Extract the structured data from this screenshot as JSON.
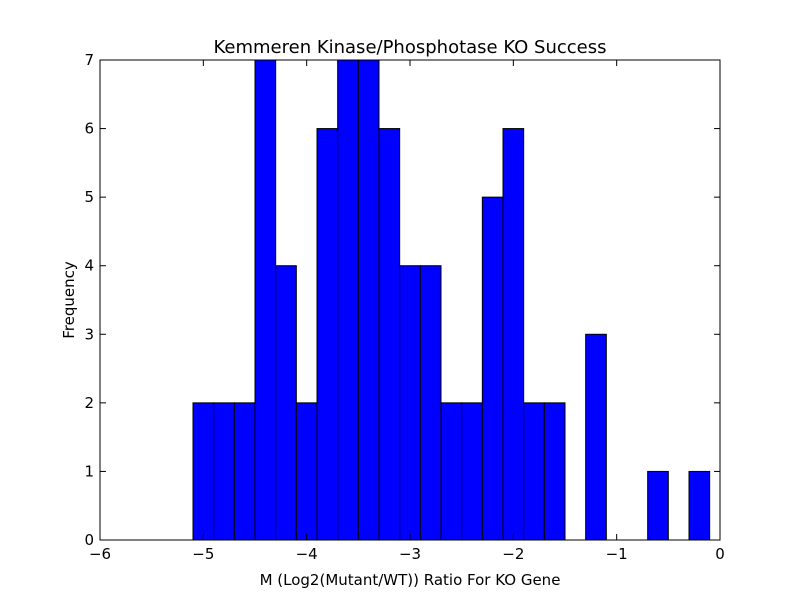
{
  "chart_data": {
    "type": "bar",
    "title": "Kemmeren Kinase/Phosphotase KO Success",
    "xlabel": "M (Log2(Mutant/WT)) Ratio For KO Gene",
    "ylabel": "Frequency",
    "xlim": [
      -6,
      0
    ],
    "ylim": [
      0,
      7
    ],
    "xticks": [
      -6,
      -5,
      -4,
      -3,
      -2,
      -1,
      0
    ],
    "xtick_labels": [
      "−6",
      "−5",
      "−4",
      "−3",
      "−2",
      "−1",
      "0"
    ],
    "yticks": [
      0,
      1,
      2,
      3,
      4,
      5,
      6,
      7
    ],
    "ytick_labels": [
      "0",
      "1",
      "2",
      "3",
      "4",
      "5",
      "6",
      "7"
    ],
    "grid": false,
    "bar_color": "#0000ff",
    "bin_start": -5.1,
    "bin_width": 0.2,
    "values": [
      2,
      2,
      2,
      7,
      4,
      2,
      6,
      7,
      7,
      6,
      4,
      4,
      2,
      2,
      5,
      6,
      2,
      2,
      0,
      3,
      0,
      0,
      1,
      0,
      1
    ]
  }
}
